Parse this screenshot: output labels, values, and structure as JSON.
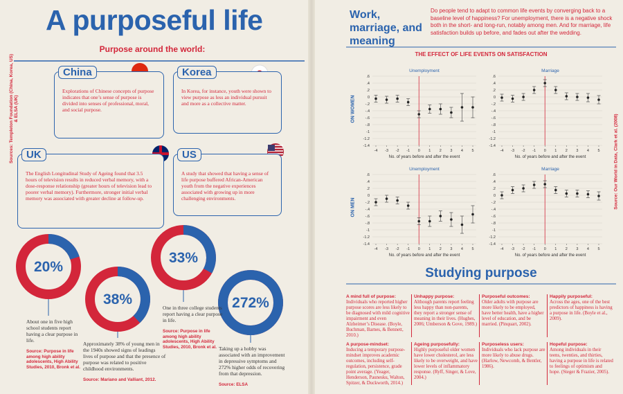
{
  "left": {
    "title": "A purposeful life",
    "subtitle": "Purpose around the world:",
    "source": "Sources: Templeton Foundation (China, Korea, US) & ELSA (UK)",
    "boxes": [
      {
        "title": "China",
        "text": "Explorations of Chinese concepts of purpose indicates that one’s sense of purpose is divided into senses of professional, moral, and social purpose."
      },
      {
        "title": "Korea",
        "text": "In Korea, for instance, youth were shown to view purpose as less an individual pursuit and more as a collective matter."
      },
      {
        "title": "UK",
        "text": "The English Longitudinal Study of Ageing found that 3.5 hours of television results in reduced verbal memory, with a dose-response relationship (greater hours of television lead to poorer verbal memory). Furthermore, stronger initial verbal memory was associated with greater decline at follow-up."
      },
      {
        "title": "US",
        "text": "A study that showed that having a sense of life purpose buffered African-American youth from the negative experiences associated with growing up in more challenging environments."
      }
    ],
    "donuts": [
      {
        "value": 20,
        "value_label": "20%",
        "text": "About one in five high school students report having a clear purpose in life.",
        "source": "Source: Purpose in life among high ability adolescents, High Ability Studies, 2010, Bronk et al."
      },
      {
        "value": 38,
        "value_label": "38%",
        "text": "Approximately 38% of young men in the 1940s showed signs of leadings lives of purpose and that the presence of purpose was related to positive childhood environments.",
        "source": "Source: Mariano and Valliant, 2012."
      },
      {
        "value": 33,
        "value_label": "33%",
        "text": "One in three college students report having a clear purpose in life.",
        "source": "Source: Purpose in life among high ability adolescents, High Ability Studies, 2010, Bronk et al."
      },
      {
        "value": 272,
        "value_label": "272%",
        "text": "Taking up a hobby was associated with an improvement in depressive symptoms and 272% higher odds of recovering from that depression.",
        "source": "Source: ELSA"
      }
    ]
  },
  "right": {
    "title": "Work, marriage, and meaning",
    "intro": "Do people tend to adapt to common life events by converging back to a baseline level of happiness? For unemployment, there is a negative shock both in the short- and long-run, notably among men. And for marriage, life satisfaction builds up before, and fades out after the wedding.",
    "charts_title": "THE EFFECT OF LIFE EVENTS ON SATISFACTION",
    "row_labels": [
      "ON WOMEN",
      "ON MEN"
    ],
    "source": "Source: Our World in Data, Clark et al. (2008)",
    "section_title": "Studying purpose",
    "items": [
      {
        "title": "A mind full of purpose:",
        "text": "Individuals who reported higher purpose scores are less likely to be diagnosed with mild cognitive impairment and even Alzheimer’s Disease. (Boyle, Buchman, Barnes, & Bennett, 2010.)"
      },
      {
        "title": "Unhappy purpose:",
        "text": "Although parents report feeling less happy than non-parents, they report a stronger sense of meaning in their lives. (Hughes, 2006; Umberson & Gove, 1989.)"
      },
      {
        "title": "Purposeful outcomes:",
        "text": "Older adults with purpose are more likely to be employed, have better health, have a higher level of education, and be married. (Pinquart, 2002)."
      },
      {
        "title": "Happily purposeful:",
        "text": "Across the ages, one of the best predictors of happiness is having a purpose in life. (Boyle et al., 2009)."
      },
      {
        "title": "A purpose-mindset:",
        "text": "Inducing a temporary purpose-mindset improves academic outcomes, including self-regulation, persistence, grade point average. (Yeager, Henderson, Paunesku, Walton, Spitzer, & Duckworth, 2014.)"
      },
      {
        "title": "Ageing purposefully:",
        "text": "Highly purposeful older women have lower cholesterol, are less likely to be overweight, and have lower levels of inflammatory response. (Ryff, Singer, & Love, 2004.)"
      },
      {
        "title": "Purposeless users:",
        "text": "Individuals who lack purpose are more likely to abuse drugs. (Harlow, Newcomb, & Bentler, 1986)."
      },
      {
        "title": "Hopeful purpose:",
        "text": "Among individuals in their teens, twenties, and thirties, having a purpose in life is related to feelings of optimism and hope. (Steger & Frazier, 2005)."
      }
    ]
  },
  "chart_data": [
    {
      "type": "errorbar",
      "title": "Unemployment",
      "x": [
        -4,
        -3,
        -2,
        -1,
        0,
        1,
        2,
        3,
        4,
        5
      ],
      "values": [
        -0.05,
        -0.08,
        -0.05,
        -0.15,
        -0.5,
        -0.35,
        -0.35,
        -0.45,
        -0.3,
        -0.3
      ],
      "errors": [
        0.1,
        0.1,
        0.1,
        0.1,
        0.1,
        0.12,
        0.15,
        0.15,
        0.4,
        0.3
      ],
      "xlabel": "No. of years before and after the event",
      "xticks": [
        -4,
        -3,
        -2,
        -1,
        0,
        1,
        2,
        3,
        4,
        5
      ],
      "ylim": [
        -1.4,
        0.6
      ],
      "yticks": [
        {
          "value": 0.6,
          "label": ".6"
        },
        {
          "value": 0.4,
          "label": ".4"
        },
        {
          "value": 0.2,
          "label": ".2"
        },
        0,
        {
          "value": -0.2,
          "label": "-.2"
        },
        {
          "value": -0.4,
          "label": "-.4"
        },
        {
          "value": -0.6,
          "label": "-.6"
        },
        {
          "value": -0.8,
          "label": "-.8"
        },
        -1,
        -1.2,
        -1.4
      ],
      "color": "#555555",
      "grid": true
    },
    {
      "type": "errorbar",
      "title": "Marriage",
      "x": [
        -4,
        -3,
        -2,
        -1,
        0,
        1,
        2,
        3,
        4,
        5
      ],
      "values": [
        -0.02,
        -0.05,
        0,
        0.2,
        0.4,
        0.2,
        0.02,
        0,
        -0.02,
        -0.08
      ],
      "errors": [
        0.1,
        0.1,
        0.1,
        0.1,
        0.1,
        0.1,
        0.1,
        0.1,
        0.12,
        0.12
      ],
      "xlabel": "No. of years before and after the event",
      "xticks": [
        -4,
        -3,
        -2,
        -1,
        0,
        1,
        2,
        3,
        4,
        5
      ],
      "ylim": [
        -1.4,
        0.6
      ],
      "yticks": [
        {
          "value": 0.6,
          "label": ".6"
        },
        {
          "value": 0.4,
          "label": ".4"
        },
        {
          "value": 0.2,
          "label": ".2"
        },
        0,
        {
          "value": -0.2,
          "label": "-.2"
        },
        {
          "value": -0.4,
          "label": "-.4"
        },
        {
          "value": -0.6,
          "label": "-.6"
        },
        {
          "value": -0.8,
          "label": "-.8"
        },
        -1,
        -1.2,
        -1.4
      ],
      "color": "#555555",
      "grid": true
    },
    {
      "type": "errorbar",
      "title": "Unemployment",
      "x": [
        -4,
        -3,
        -2,
        -1,
        0,
        1,
        2,
        3,
        4,
        5
      ],
      "values": [
        -0.2,
        -0.1,
        -0.15,
        -0.3,
        -0.75,
        -0.75,
        -0.6,
        -0.7,
        -0.85,
        -0.55
      ],
      "errors": [
        0.1,
        0.1,
        0.1,
        0.1,
        0.1,
        0.15,
        0.15,
        0.2,
        0.25,
        0.25
      ],
      "xlabel": "No. of years before and after the event",
      "xticks": [
        -4,
        -3,
        -2,
        -1,
        0,
        1,
        2,
        3,
        4,
        5
      ],
      "ylim": [
        -1.4,
        0.6
      ],
      "yticks": [
        {
          "value": 0.6,
          "label": ".6"
        },
        {
          "value": 0.4,
          "label": ".4"
        },
        {
          "value": 0.2,
          "label": ".2"
        },
        0,
        {
          "value": -0.2,
          "label": "-.2"
        },
        {
          "value": -0.4,
          "label": "-.4"
        },
        {
          "value": -0.6,
          "label": "-.6"
        },
        {
          "value": -0.8,
          "label": "-.8"
        },
        -1,
        -1.2,
        -1.4
      ],
      "color": "#555555",
      "grid": true
    },
    {
      "type": "errorbar",
      "title": "Marriage",
      "x": [
        -4,
        -3,
        -2,
        -1,
        0,
        1,
        2,
        3,
        4,
        5
      ],
      "values": [
        0,
        0.15,
        0.2,
        0.3,
        0.32,
        0.15,
        0.05,
        0.05,
        0.03,
        -0.02
      ],
      "errors": [
        0.1,
        0.1,
        0.1,
        0.1,
        0.1,
        0.1,
        0.1,
        0.1,
        0.1,
        0.12
      ],
      "xlabel": "No. of years before and after the event",
      "xticks": [
        -4,
        -3,
        -2,
        -1,
        0,
        1,
        2,
        3,
        4,
        5
      ],
      "ylim": [
        -1.4,
        0.6
      ],
      "yticks": [
        {
          "value": 0.6,
          "label": ".6"
        },
        {
          "value": 0.4,
          "label": ".4"
        },
        {
          "value": 0.2,
          "label": ".2"
        },
        0,
        {
          "value": -0.2,
          "label": "-.2"
        },
        {
          "value": -0.4,
          "label": "-.4"
        },
        {
          "value": -0.6,
          "label": "-.6"
        },
        {
          "value": -0.8,
          "label": "-.8"
        },
        -1,
        -1.2,
        -1.4
      ],
      "color": "#555555",
      "grid": true
    }
  ]
}
